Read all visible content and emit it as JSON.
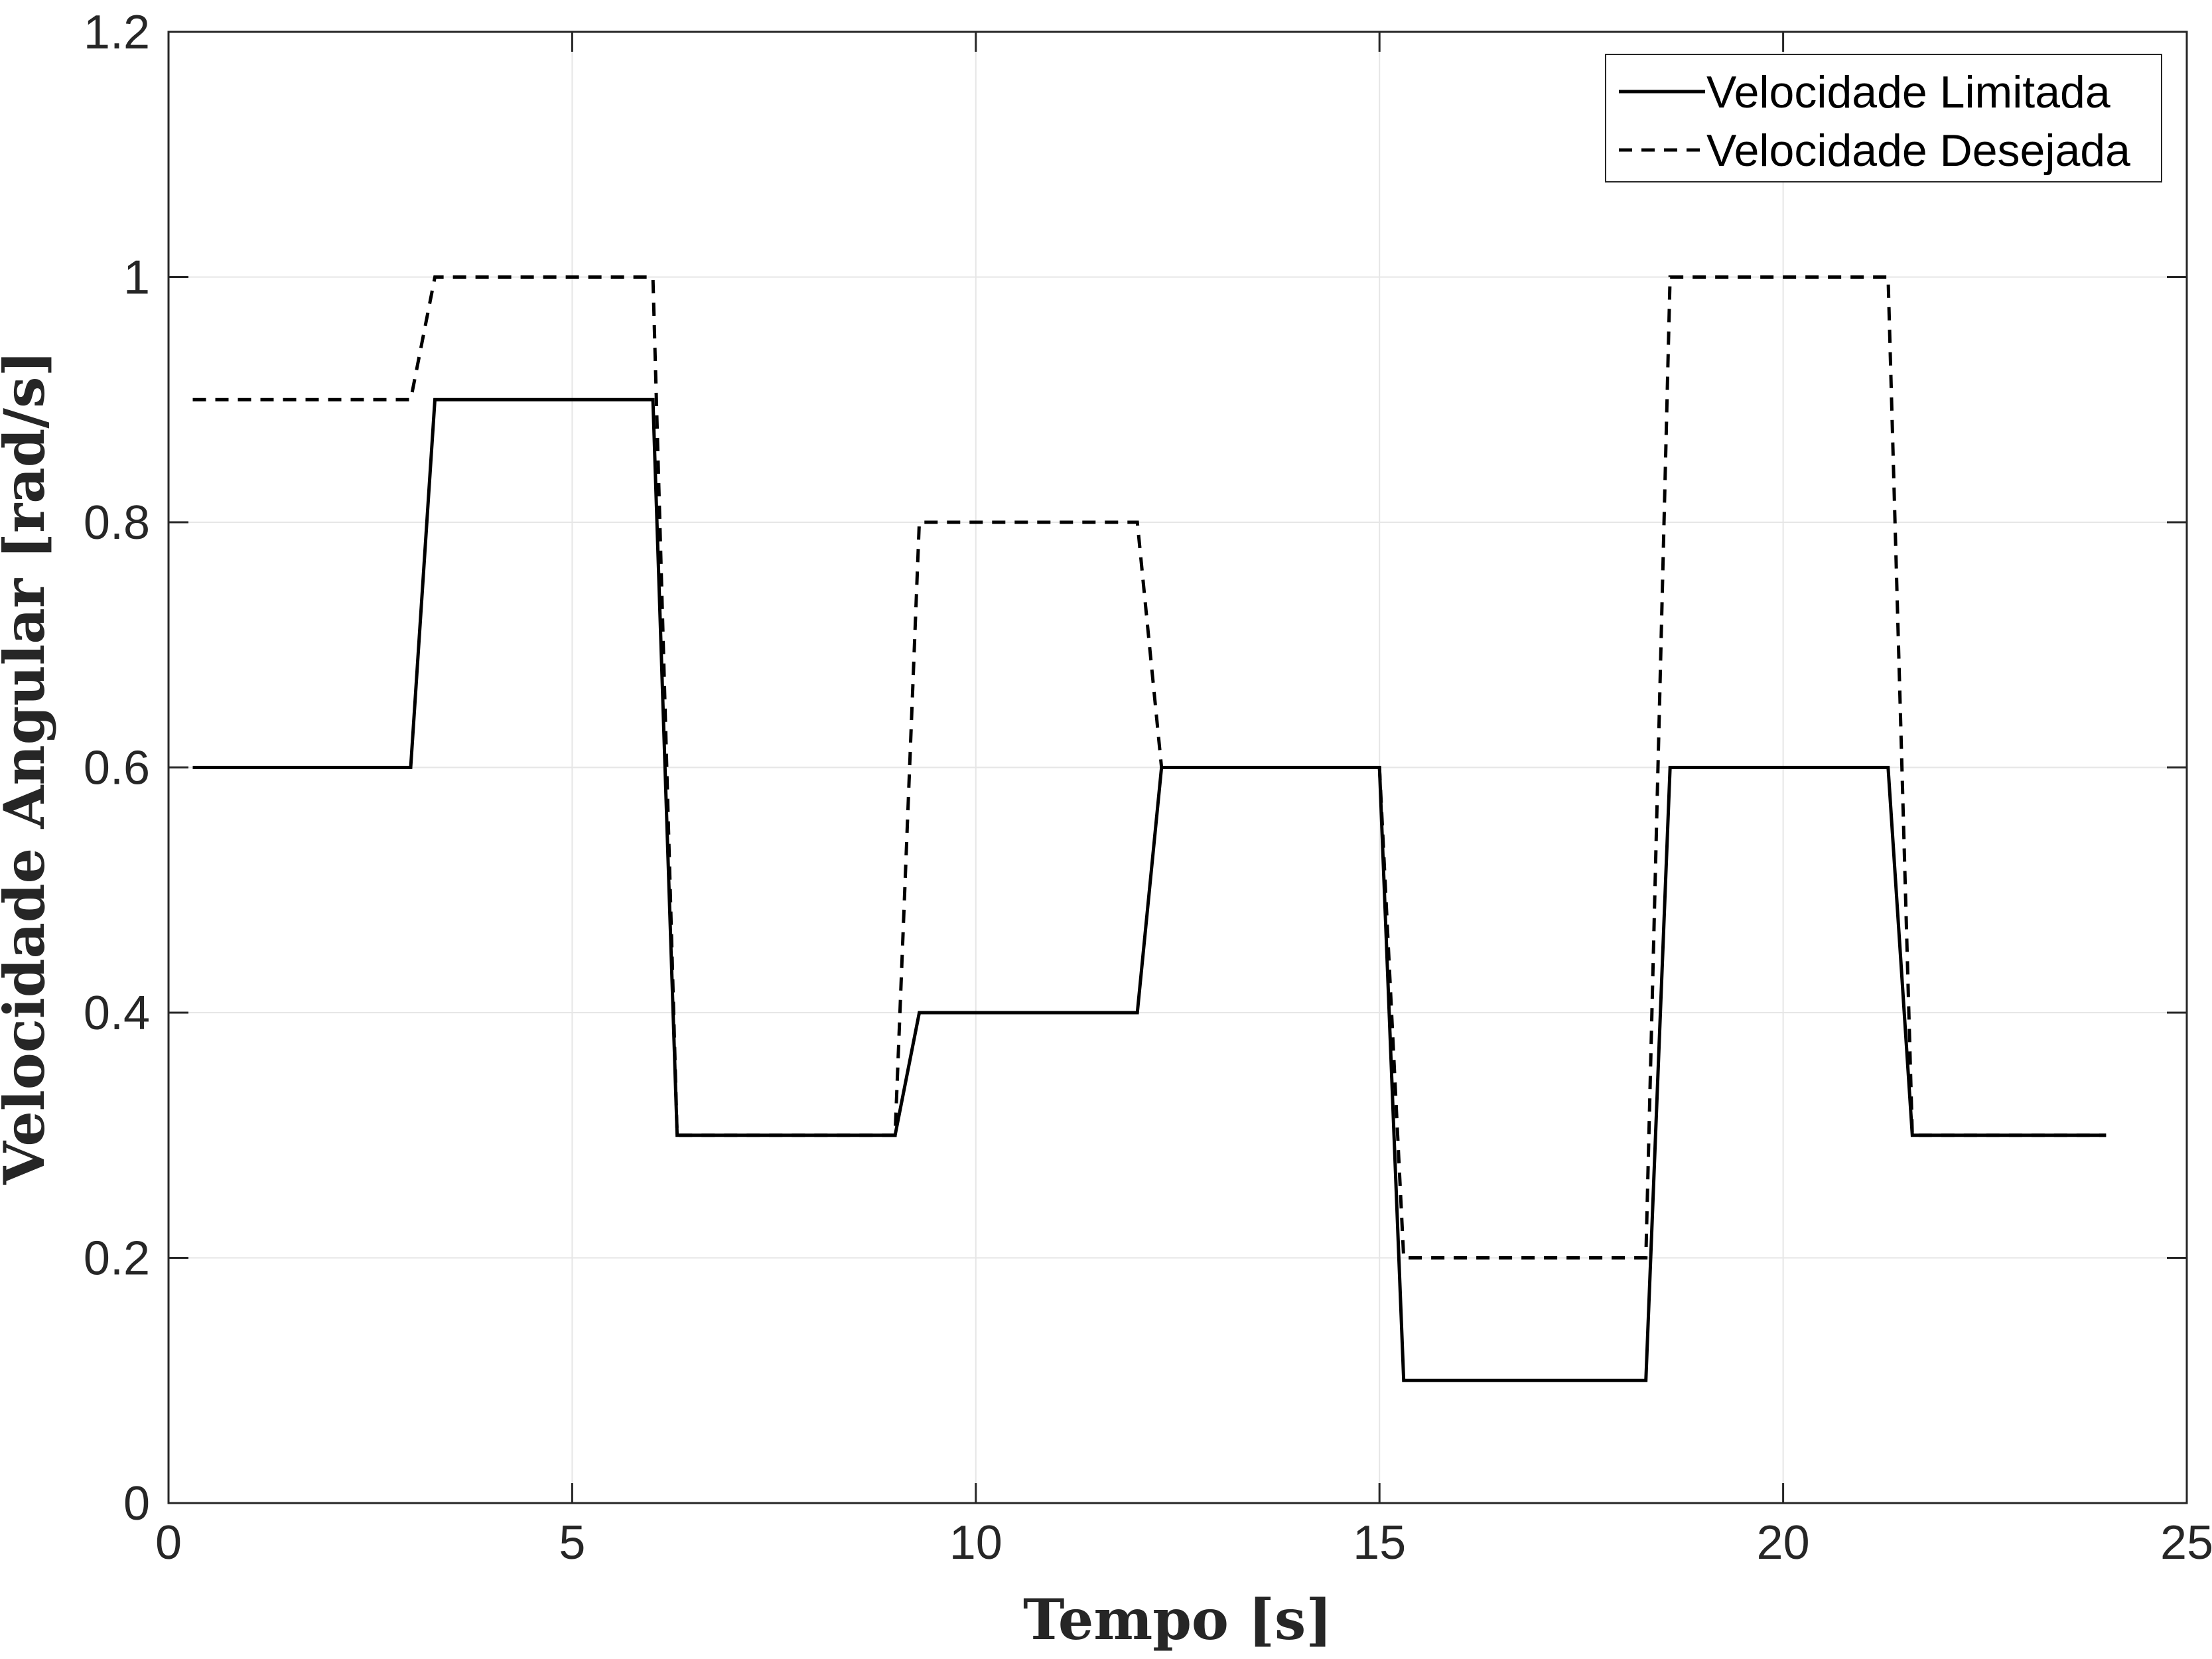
{
  "chart_data": {
    "type": "line",
    "title": "",
    "xlabel": "Tempo [s]",
    "ylabel": "Velocidade Angular [rad/s]",
    "xlim": [
      0,
      25
    ],
    "ylim": [
      0,
      1.2
    ],
    "xticks": [
      0,
      5,
      10,
      15,
      20,
      25
    ],
    "yticks": [
      0,
      0.2,
      0.4,
      0.6,
      0.8,
      1,
      1.2
    ],
    "xtick_labels": [
      "0",
      "5",
      "10",
      "15",
      "20",
      "25"
    ],
    "ytick_labels": [
      "0",
      "0.2",
      "0.4",
      "0.6",
      "0.8",
      "1",
      "1.2"
    ],
    "grid": true,
    "legend_position": "top-right",
    "colors": {
      "series": "#000000",
      "grid": "#e6e6e6",
      "axis": "#262626"
    },
    "series": [
      {
        "name": "Velocidade Limitada",
        "style": "solid",
        "x": [
          0.3,
          3.0,
          3.3,
          6.0,
          6.3,
          9.0,
          9.3,
          12.0,
          12.3,
          15.0,
          15.3,
          18.3,
          18.6,
          21.3,
          21.6,
          24.0
        ],
        "y": [
          0.6,
          0.6,
          0.9,
          0.9,
          0.3,
          0.3,
          0.4,
          0.4,
          0.6,
          0.6,
          0.1,
          0.1,
          0.6,
          0.6,
          0.3,
          0.3
        ]
      },
      {
        "name": "Velocidade Desejada",
        "style": "dashed",
        "x": [
          0.3,
          3.0,
          3.3,
          6.0,
          6.3,
          9.0,
          9.3,
          12.0,
          12.3,
          15.0,
          15.3,
          18.3,
          18.6,
          21.3,
          21.6,
          24.0
        ],
        "y": [
          0.9,
          0.9,
          1.0,
          1.0,
          0.3,
          0.3,
          0.8,
          0.8,
          0.6,
          0.6,
          0.2,
          0.2,
          1.0,
          1.0,
          0.3,
          0.3
        ]
      }
    ]
  }
}
